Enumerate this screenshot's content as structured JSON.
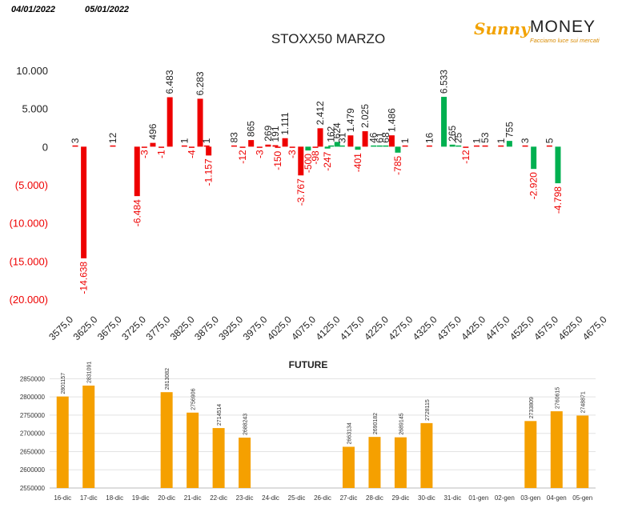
{
  "header": {
    "date_left": "04/01/2022",
    "date_right": "05/01/2022",
    "logo_sunny": "Sunny",
    "logo_money": "MONEY",
    "logo_tagline": "Facciamo luce sui mercati"
  },
  "colors": {
    "negative": "#ee0000",
    "positive_green": "#00b050",
    "future_bar": "#f5a000",
    "negative_label": "#ee0000",
    "text": "#222222"
  },
  "chart_data": [
    {
      "type": "bar",
      "title": "STOXX50 MARZO",
      "categories": [
        "3575,0",
        "3625,0",
        "3675,0",
        "3725,0",
        "3775,0",
        "3825,0",
        "3875,0",
        "3925,0",
        "3975,0",
        "4025,0",
        "4075,0",
        "4125,0",
        "4175,0",
        "4225,0",
        "4275,0",
        "4325,0",
        "4375,0",
        "4425,0",
        "4475,0",
        "4525,0",
        "4575,0",
        "4625,0",
        "4675,0"
      ],
      "y_tick_labels": [
        "10.000",
        "5.000",
        "0",
        "(5.000)",
        "(10.000)",
        "(15.000)",
        "(20.000)"
      ],
      "y_ticks": [
        10000,
        5000,
        0,
        -5000,
        -10000,
        -15000,
        -20000
      ],
      "ylim": [
        -20000,
        10000
      ],
      "grid": false,
      "series": [
        {
          "values": [
            {
              "x": 0,
              "value": 3,
              "label": "3",
              "color": "red"
            },
            {
              "x": 0.35,
              "value": -14638,
              "label": "-14.638",
              "color": "red"
            },
            {
              "x": 1.55,
              "value": 12,
              "label": "12",
              "color": "red"
            },
            {
              "x": 2.55,
              "value": -6484,
              "label": "-6.484",
              "color": "red"
            },
            {
              "x": 2.85,
              "value": -3,
              "label": "-3",
              "color": "red"
            },
            {
              "x": 3.2,
              "value": 496,
              "label": "496",
              "color": "red"
            },
            {
              "x": 3.55,
              "value": -1,
              "label": "-1",
              "color": "red"
            },
            {
              "x": 3.9,
              "value": 6483,
              "label": "6.483",
              "color": "red"
            },
            {
              "x": 4.5,
              "value": 1,
              "label": "1",
              "color": "red"
            },
            {
              "x": 4.8,
              "value": -4,
              "label": "-4",
              "color": "red"
            },
            {
              "x": 5.15,
              "value": 6283,
              "label": "6.283",
              "color": "red"
            },
            {
              "x": 5.5,
              "value": -1157,
              "label": "-1.157",
              "color": "red"
            },
            {
              "x": 5.42,
              "value": 1,
              "label": "1",
              "color": "red"
            },
            {
              "x": 6.55,
              "value": 83,
              "label": "83",
              "color": "red"
            },
            {
              "x": 6.9,
              "value": -12,
              "label": "-12",
              "color": "red"
            },
            {
              "x": 7.25,
              "value": 865,
              "label": "865",
              "color": "red"
            },
            {
              "x": 7.6,
              "value": -3,
              "label": "-3",
              "color": "red"
            },
            {
              "x": 7.95,
              "value": 269,
              "label": "269",
              "color": "red"
            },
            {
              "x": 8.25,
              "value": 191,
              "label": "191",
              "color": "red"
            },
            {
              "x": 8.35,
              "value": -150,
              "label": "-150",
              "color": "red"
            },
            {
              "x": 8.65,
              "value": 1111,
              "label": "1.111",
              "color": "red"
            },
            {
              "x": 8.95,
              "value": -3,
              "label": "-3",
              "color": "red"
            },
            {
              "x": 9.3,
              "value": -3767,
              "label": "-3.767",
              "color": "red"
            },
            {
              "x": 9.6,
              "value": -500,
              "label": "-500",
              "color": "green"
            },
            {
              "x": 9.9,
              "value": -98,
              "label": "-98",
              "color": "red"
            },
            {
              "x": 10.1,
              "value": 2412,
              "label": "2.412",
              "color": "red"
            },
            {
              "x": 10.4,
              "value": -247,
              "label": "-247",
              "color": "green"
            },
            {
              "x": 10.55,
              "value": 162,
              "label": "162",
              "color": "green"
            },
            {
              "x": 10.8,
              "value": 624,
              "label": "624",
              "color": "green"
            },
            {
              "x": 11.0,
              "value": 31,
              "label": "31",
              "color": "green"
            },
            {
              "x": 11.35,
              "value": 1479,
              "label": "1.479",
              "color": "red"
            },
            {
              "x": 11.65,
              "value": -401,
              "label": "-401",
              "color": "green"
            },
            {
              "x": 11.95,
              "value": 2025,
              "label": "2.025",
              "color": "red"
            },
            {
              "x": 12.3,
              "value": 46,
              "label": "46",
              "color": "green"
            },
            {
              "x": 12.55,
              "value": 61,
              "label": "61",
              "color": "green"
            },
            {
              "x": 12.8,
              "value": 68,
              "label": "68",
              "color": "green"
            },
            {
              "x": 13.05,
              "value": 1486,
              "label": "1.486",
              "color": "red"
            },
            {
              "x": 13.3,
              "value": -785,
              "label": "-785",
              "color": "green"
            },
            {
              "x": 13.6,
              "value": 1,
              "label": "1",
              "color": "red"
            },
            {
              "x": 14.6,
              "value": 16,
              "label": "16",
              "color": "red"
            },
            {
              "x": 15.2,
              "value": 6533,
              "label": "6.533",
              "color": "green"
            },
            {
              "x": 15.55,
              "value": 265,
              "label": "265",
              "color": "green"
            },
            {
              "x": 15.8,
              "value": 25,
              "label": "25",
              "color": "green"
            },
            {
              "x": 16.1,
              "value": -12,
              "label": "-12",
              "color": "red"
            },
            {
              "x": 16.55,
              "value": 1,
              "label": "1",
              "color": "red"
            },
            {
              "x": 16.9,
              "value": 53,
              "label": "53",
              "color": "red"
            },
            {
              "x": 17.55,
              "value": 1,
              "label": "1",
              "color": "red"
            },
            {
              "x": 17.9,
              "value": 755,
              "label": "755",
              "color": "green"
            },
            {
              "x": 18.55,
              "value": 3,
              "label": "3",
              "color": "red"
            },
            {
              "x": 18.9,
              "value": -2920,
              "label": "-2.920",
              "color": "green"
            },
            {
              "x": 19.55,
              "value": 5,
              "label": "5",
              "color": "red"
            },
            {
              "x": 19.9,
              "value": -4798,
              "label": "-4.798",
              "color": "green"
            }
          ]
        }
      ]
    },
    {
      "type": "bar",
      "title": "FUTURE",
      "categories": [
        "16-dic",
        "17-dic",
        "18-dic",
        "19-dic",
        "20-dic",
        "21-dic",
        "22-dic",
        "23-dic",
        "24-dic",
        "25-dic",
        "26-dic",
        "27-dic",
        "28-dic",
        "29-dic",
        "30-dic",
        "31-dic",
        "01-gen",
        "02-gen",
        "03-gen",
        "04-gen",
        "05-gen"
      ],
      "values": [
        2801157,
        2831091,
        null,
        null,
        2813082,
        2756906,
        2714514,
        2688243,
        null,
        null,
        null,
        2663134,
        2690182,
        2689145,
        2728115,
        null,
        null,
        null,
        2733809,
        2760615,
        2748871
      ],
      "value_labels": [
        "2801157",
        "2831091",
        "",
        "",
        "2813082",
        "2756906",
        "2714514",
        "2688243",
        "",
        "",
        "",
        "2663134",
        "2690182",
        "2689145",
        "2728115",
        "",
        "",
        "",
        "2733809",
        "2760615",
        "2748871"
      ],
      "y_tick_labels": [
        "2850000",
        "2800000",
        "2750000",
        "2700000",
        "2650000",
        "2600000",
        "2550000"
      ],
      "y_ticks": [
        2850000,
        2800000,
        2750000,
        2700000,
        2650000,
        2600000,
        2550000
      ],
      "ylim": [
        2550000,
        2875000
      ],
      "grid": true
    }
  ]
}
